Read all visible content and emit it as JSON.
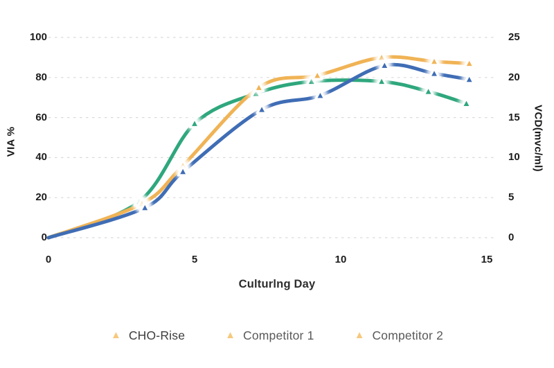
{
  "page": {
    "background": "#ffffff"
  },
  "chart_data": {
    "type": "line",
    "title": "",
    "xlabel": "Culturlng Day",
    "ylabel_left": "VIA %",
    "ylabel_right": "VCD(mvc/ml)",
    "x_ticks": [
      0,
      5,
      10,
      15
    ],
    "y_ticks_left": [
      100,
      80,
      60,
      40,
      20,
      0
    ],
    "y_ticks_right": [
      25,
      20,
      15,
      10,
      5,
      0
    ],
    "xlim": [
      0,
      15.5
    ],
    "ylim_left": [
      0,
      100
    ],
    "ylim_right": [
      0,
      25
    ],
    "grid": "horizontal dashed, light gray",
    "gridline_color": "#d9d9d9",
    "marker_shape": "triangle-up with white outline and soft white glow",
    "series": [
      {
        "name": "CHO-Rise",
        "color": "#f0b355",
        "x": [
          0,
          3.2,
          4.6,
          7.2,
          9.2,
          11.4,
          13.2,
          14.4
        ],
        "via_pct": [
          0,
          17,
          36,
          75,
          81,
          90,
          88,
          87
        ],
        "vcd_mvc_ml": [
          0,
          4.3,
          9.0,
          18.8,
          20.3,
          22.5,
          22.0,
          21.8
        ]
      },
      {
        "name": "Competitor 1",
        "color": "#3f6db5",
        "x": [
          0,
          3.3,
          4.6,
          7.3,
          9.3,
          11.5,
          13.2,
          14.4
        ],
        "via_pct": [
          0,
          15,
          33,
          64,
          71,
          86,
          82,
          79
        ],
        "vcd_mvc_ml": [
          0,
          3.8,
          8.3,
          16.0,
          17.8,
          21.5,
          20.5,
          19.8
        ]
      },
      {
        "name": "Competitor 2",
        "color": "#2fa77d",
        "x": [
          0,
          3.1,
          5.0,
          7.1,
          9.0,
          11.4,
          13.0,
          14.3
        ],
        "via_pct": [
          0,
          18,
          57,
          72,
          78,
          78,
          73,
          67
        ],
        "vcd_mvc_ml": [
          0,
          4.5,
          14.3,
          18.0,
          19.5,
          19.5,
          18.3,
          16.8
        ]
      }
    ],
    "legend": {
      "position": "bottom",
      "marker_glyph": "▲",
      "marker_color": "#f6c97d",
      "items": [
        {
          "label": "CHO-Rise",
          "color": "#3d3d3d"
        },
        {
          "label": "Competitor 1",
          "color": "#595959"
        },
        {
          "label": "Competitor 2",
          "color": "#595959"
        }
      ]
    }
  }
}
